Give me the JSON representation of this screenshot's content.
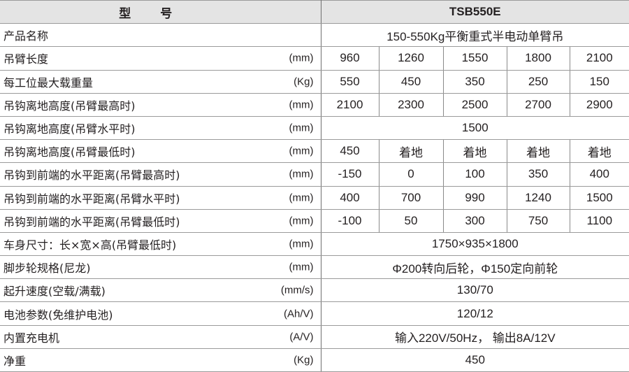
{
  "header": {
    "label": "型号",
    "model": "TSB550E"
  },
  "rows": [
    {
      "label": "产品名称",
      "unit": "",
      "values": [
        "150-550Kg平衡重式半电动单臂吊"
      ]
    },
    {
      "label": "吊臂长度",
      "unit": "(mm)",
      "values": [
        "960",
        "1260",
        "1550",
        "1800",
        "2100"
      ]
    },
    {
      "label": "每工位最大载重量",
      "unit": "(Kg)",
      "values": [
        "550",
        "450",
        "350",
        "250",
        "150"
      ]
    },
    {
      "label": "吊钩离地高度(吊臂最高时)",
      "unit": "(mm)",
      "values": [
        "2100",
        "2300",
        "2500",
        "2700",
        "2900"
      ]
    },
    {
      "label": "吊钩离地高度(吊臂水平时)",
      "unit": "(mm)",
      "values": [
        "1500"
      ]
    },
    {
      "label": "吊钩离地高度(吊臂最低时)",
      "unit": "(mm)",
      "values": [
        "450",
        "着地",
        "着地",
        "着地",
        "着地"
      ]
    },
    {
      "label": "吊钩到前端的水平距离(吊臂最高时)",
      "unit": "(mm)",
      "values": [
        "-150",
        "0",
        "100",
        "350",
        "400"
      ]
    },
    {
      "label": "吊钩到前端的水平距离(吊臂水平时)",
      "unit": "(mm)",
      "values": [
        "400",
        "700",
        "990",
        "1240",
        "1500"
      ]
    },
    {
      "label": "吊钩到前端的水平距离(吊臂最低时)",
      "unit": "(mm)",
      "values": [
        "-100",
        "50",
        "300",
        "750",
        "1100"
      ]
    },
    {
      "label": "车身尺寸：长×宽×高(吊臂最低时)",
      "unit": "(mm)",
      "values": [
        "1750×935×1800"
      ]
    },
    {
      "label": "脚步轮规格(尼龙)",
      "unit": "(mm)",
      "values": [
        "Φ200转向后轮，Φ150定向前轮"
      ]
    },
    {
      "label": "起升速度(空载/满载)",
      "unit": "(mm/s)",
      "values": [
        "130/70"
      ]
    },
    {
      "label": "电池参数(免维护电池)",
      "unit": "(Ah/V)",
      "values": [
        "120/12"
      ]
    },
    {
      "label": "内置充电机",
      "unit": "(A/V)",
      "values": [
        "输入220V/50Hz， 输出8A/12V"
      ]
    },
    {
      "label": "净重",
      "unit": "(Kg)",
      "values": [
        "450"
      ]
    }
  ]
}
